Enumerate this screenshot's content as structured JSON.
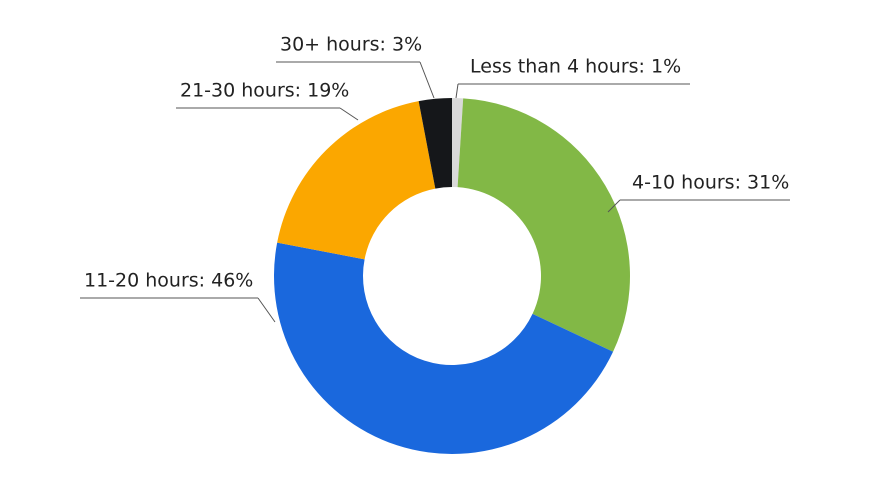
{
  "chart_data": {
    "type": "donut",
    "values": [
      1,
      31,
      46,
      19,
      3
    ],
    "value_labels": [
      "Less than 4 hours: 1%",
      "4-10 hours: 31%",
      "11-20 hours: 46%",
      "21-30 hours: 19%",
      "30+ hours: 3%"
    ],
    "colors": [
      "#d9d9d9",
      "#82b846",
      "#1a68dd",
      "#fba700",
      "#15171a"
    ]
  }
}
